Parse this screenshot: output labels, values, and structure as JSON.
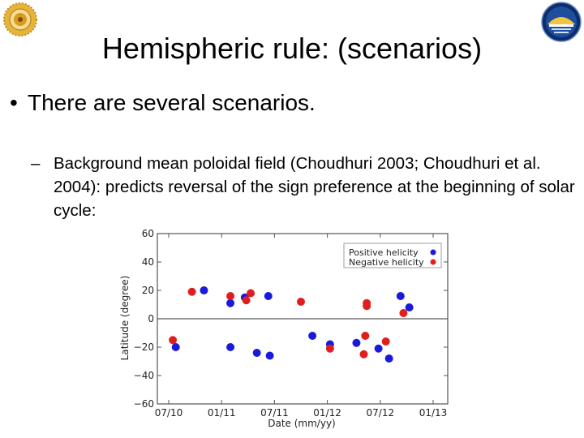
{
  "slide": {
    "title": "Hemispheric rule: (scenarios)",
    "bullet": "There are several scenarios.",
    "bullet_marker": "•",
    "sub_marker": "–",
    "sub_bullet": "Background mean poloidal field (Choudhuri 2003; Choudhuri et al. 2004): predicts reversal of the sign preference at the beginning of solar cycle:"
  },
  "logos": {
    "left_icon": "institute-seal-icon",
    "right_icon": "observatory-emblem-icon"
  },
  "chart_data": {
    "type": "scatter",
    "xlabel": "Date (mm/yy)",
    "ylabel": "Latitude (degree)",
    "x_ticks": [
      "07/10",
      "01/11",
      "07/11",
      "01/12",
      "07/12",
      "01/13"
    ],
    "y_ticks": [
      "60",
      "40",
      "20",
      "0",
      "−20",
      "−40",
      "−60"
    ],
    "xlim": [
      "07/10",
      "01/13"
    ],
    "ylim": [
      -60,
      60
    ],
    "zero_line": true,
    "legend_position": "top-right",
    "series": [
      {
        "name": "Positive helicity",
        "color": "#1a1adc",
        "points": [
          {
            "x": "2010-07-25",
            "y": -20
          },
          {
            "x": "2010-11-01",
            "y": 20
          },
          {
            "x": "2011-02-01",
            "y": 11
          },
          {
            "x": "2011-02-01",
            "y": -20
          },
          {
            "x": "2011-03-20",
            "y": 15
          },
          {
            "x": "2011-05-01",
            "y": -24
          },
          {
            "x": "2011-06-10",
            "y": 16
          },
          {
            "x": "2011-06-15",
            "y": -26
          },
          {
            "x": "2011-11-10",
            "y": -12
          },
          {
            "x": "2012-01-10",
            "y": -18
          },
          {
            "x": "2012-04-10",
            "y": -17
          },
          {
            "x": "2012-06-25",
            "y": -21
          },
          {
            "x": "2012-08-01",
            "y": -28
          },
          {
            "x": "2012-09-10",
            "y": 16
          },
          {
            "x": "2012-10-10",
            "y": 8
          }
        ]
      },
      {
        "name": "Negative helicity",
        "color": "#e01e1e",
        "points": [
          {
            "x": "2010-07-15",
            "y": -15
          },
          {
            "x": "2010-09-20",
            "y": 19
          },
          {
            "x": "2011-02-01",
            "y": 16
          },
          {
            "x": "2011-03-25",
            "y": 13
          },
          {
            "x": "2011-04-10",
            "y": 18
          },
          {
            "x": "2011-10-01",
            "y": 12
          },
          {
            "x": "2012-01-10",
            "y": -21
          },
          {
            "x": "2012-05-15",
            "y": 11
          },
          {
            "x": "2012-05-15",
            "y": 9
          },
          {
            "x": "2012-05-10",
            "y": -12
          },
          {
            "x": "2012-05-05",
            "y": -25
          },
          {
            "x": "2012-07-20",
            "y": -16
          },
          {
            "x": "2012-09-20",
            "y": 4
          }
        ]
      }
    ]
  }
}
